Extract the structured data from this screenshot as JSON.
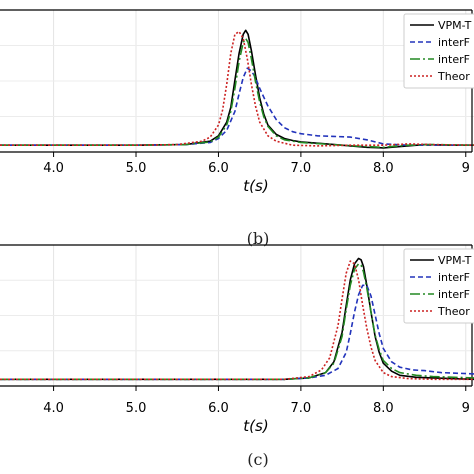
{
  "chart_data": [
    {
      "type": "line",
      "caption": "(b)",
      "xlabel": "t(s)",
      "ylabel": "",
      "x_ticks": [
        "4.0",
        "5.0",
        "6.0",
        "7.0",
        "8.0",
        "9"
      ],
      "xlim": [
        3.35,
        9.1
      ],
      "ylim": [
        -0.05,
        1.0
      ],
      "grid": true,
      "legend_position": "top-right",
      "series": [
        {
          "name": "VPM-T",
          "color": "#000000",
          "dash": "solid",
          "x": [
            3.35,
            5.0,
            5.6,
            5.9,
            6.0,
            6.1,
            6.15,
            6.2,
            6.25,
            6.3,
            6.33,
            6.36,
            6.4,
            6.45,
            6.5,
            6.55,
            6.6,
            6.7,
            6.8,
            6.9,
            7.0,
            7.2,
            7.5,
            7.8,
            8.0,
            8.2,
            8.5,
            8.8,
            9.1
          ],
          "y": [
            0.0,
            0.0,
            0.005,
            0.03,
            0.07,
            0.17,
            0.28,
            0.48,
            0.68,
            0.82,
            0.85,
            0.82,
            0.7,
            0.52,
            0.35,
            0.23,
            0.15,
            0.08,
            0.05,
            0.035,
            0.025,
            0.015,
            0.0,
            -0.015,
            -0.02,
            -0.01,
            0.005,
            0.0,
            0.0
          ]
        },
        {
          "name": "interF",
          "color": "#2233bb",
          "dash": "5,3",
          "x": [
            3.35,
            5.0,
            5.6,
            5.9,
            6.0,
            6.1,
            6.2,
            6.25,
            6.3,
            6.35,
            6.4,
            6.45,
            6.5,
            6.6,
            6.7,
            6.8,
            6.9,
            7.0,
            7.2,
            7.4,
            7.6,
            7.8,
            8.0,
            8.3,
            8.6,
            9.1
          ],
          "y": [
            0.0,
            0.0,
            0.005,
            0.02,
            0.05,
            0.11,
            0.25,
            0.38,
            0.5,
            0.57,
            0.55,
            0.5,
            0.42,
            0.29,
            0.19,
            0.13,
            0.1,
            0.085,
            0.07,
            0.065,
            0.06,
            0.04,
            0.01,
            0.0,
            0.0,
            0.0
          ]
        },
        {
          "name": "interF",
          "color": "#228822",
          "dash": "10,3,2,3",
          "x": [
            3.35,
            5.0,
            5.6,
            5.9,
            6.0,
            6.1,
            6.15,
            6.2,
            6.25,
            6.3,
            6.33,
            6.36,
            6.4,
            6.45,
            6.5,
            6.55,
            6.6,
            6.7,
            6.8,
            7.0,
            7.2,
            7.5,
            7.8,
            8.0,
            8.3,
            8.6,
            9.1
          ],
          "y": [
            0.0,
            0.0,
            0.005,
            0.025,
            0.06,
            0.15,
            0.25,
            0.42,
            0.62,
            0.76,
            0.79,
            0.76,
            0.64,
            0.47,
            0.32,
            0.21,
            0.14,
            0.07,
            0.04,
            0.02,
            0.012,
            0.0,
            -0.01,
            -0.015,
            0.0,
            0.005,
            0.0
          ]
        },
        {
          "name": "Theor",
          "color": "#cc2222",
          "dash": "2,2",
          "x": [
            3.35,
            5.0,
            5.5,
            5.8,
            5.9,
            6.0,
            6.05,
            6.1,
            6.15,
            6.2,
            6.25,
            6.3,
            6.35,
            6.4,
            6.45,
            6.5,
            6.6,
            6.7,
            6.9,
            7.2,
            7.6,
            8.0,
            8.3,
            8.6,
            9.1
          ],
          "y": [
            0.0,
            0.0,
            0.005,
            0.03,
            0.06,
            0.15,
            0.26,
            0.45,
            0.68,
            0.82,
            0.84,
            0.79,
            0.64,
            0.45,
            0.29,
            0.17,
            0.07,
            0.03,
            0.0,
            -0.005,
            0.0,
            0.0,
            0.01,
            0.005,
            0.0
          ]
        }
      ]
    },
    {
      "type": "line",
      "caption": "(c)",
      "xlabel": "t(s)",
      "ylabel": "",
      "x_ticks": [
        "4.0",
        "5.0",
        "6.0",
        "7.0",
        "8.0",
        "9"
      ],
      "xlim": [
        3.35,
        9.1
      ],
      "ylim": [
        -0.05,
        1.0
      ],
      "grid": true,
      "legend_position": "top-right",
      "series": [
        {
          "name": "VPM-T",
          "color": "#000000",
          "dash": "solid",
          "x": [
            3.35,
            6.8,
            7.1,
            7.3,
            7.4,
            7.5,
            7.55,
            7.6,
            7.65,
            7.7,
            7.73,
            7.76,
            7.8,
            7.85,
            7.9,
            7.95,
            8.0,
            8.1,
            8.2,
            8.4,
            8.6,
            9.1
          ],
          "y": [
            0.0,
            0.0,
            0.01,
            0.05,
            0.13,
            0.35,
            0.55,
            0.74,
            0.86,
            0.9,
            0.89,
            0.84,
            0.7,
            0.5,
            0.32,
            0.2,
            0.12,
            0.06,
            0.03,
            0.015,
            0.01,
            0.0
          ]
        },
        {
          "name": "interF",
          "color": "#2233bb",
          "dash": "5,3",
          "x": [
            3.35,
            6.8,
            7.1,
            7.3,
            7.45,
            7.55,
            7.6,
            7.65,
            7.7,
            7.75,
            7.8,
            7.85,
            7.9,
            7.95,
            8.0,
            8.1,
            8.2,
            8.35,
            8.5,
            8.7,
            9.1
          ],
          "y": [
            0.0,
            0.0,
            0.01,
            0.03,
            0.08,
            0.2,
            0.34,
            0.5,
            0.63,
            0.7,
            0.7,
            0.62,
            0.48,
            0.34,
            0.23,
            0.13,
            0.09,
            0.07,
            0.065,
            0.05,
            0.04
          ]
        },
        {
          "name": "interF",
          "color": "#228822",
          "dash": "10,3,2,3",
          "x": [
            3.35,
            6.8,
            7.1,
            7.3,
            7.4,
            7.5,
            7.55,
            7.6,
            7.65,
            7.7,
            7.73,
            7.76,
            7.8,
            7.85,
            7.9,
            7.95,
            8.0,
            8.1,
            8.2,
            8.4,
            8.6,
            9.1
          ],
          "y": [
            0.0,
            0.0,
            0.01,
            0.05,
            0.12,
            0.32,
            0.52,
            0.7,
            0.82,
            0.86,
            0.85,
            0.8,
            0.68,
            0.5,
            0.33,
            0.22,
            0.14,
            0.08,
            0.05,
            0.03,
            0.02,
            0.01
          ]
        },
        {
          "name": "Theor",
          "color": "#cc2222",
          "dash": "2,2",
          "x": [
            3.35,
            6.8,
            7.1,
            7.25,
            7.35,
            7.45,
            7.5,
            7.55,
            7.6,
            7.65,
            7.7,
            7.75,
            7.8,
            7.85,
            7.9,
            8.0,
            8.1,
            8.3,
            8.6,
            9.1
          ],
          "y": [
            0.0,
            0.0,
            0.02,
            0.07,
            0.16,
            0.4,
            0.6,
            0.79,
            0.88,
            0.86,
            0.74,
            0.55,
            0.38,
            0.24,
            0.14,
            0.05,
            0.02,
            0.005,
            0.0,
            0.0
          ]
        }
      ]
    }
  ]
}
